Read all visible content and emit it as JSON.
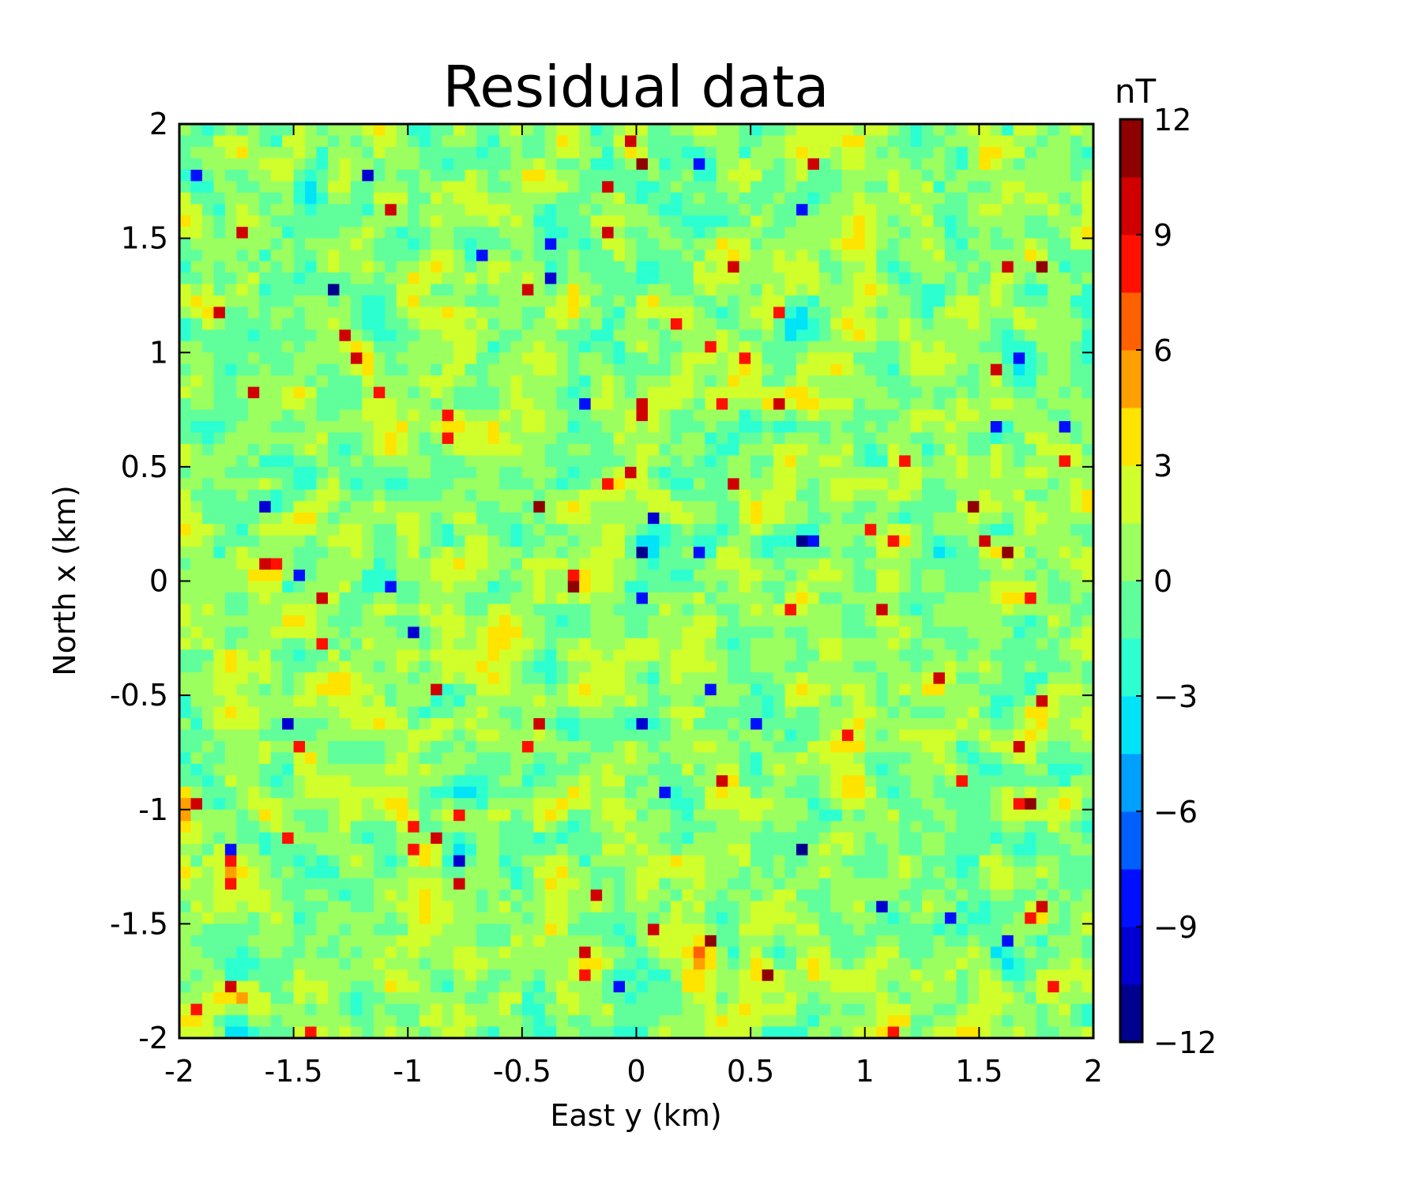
{
  "chart_data": {
    "type": "heatmap",
    "title": "Residual data",
    "xlabel": "East y (km)",
    "ylabel": "North x (km)",
    "xlim": [
      -2,
      2
    ],
    "ylim": [
      -2,
      2
    ],
    "x_ticks": [
      "-2",
      "-1.5",
      "-1",
      "-0.5",
      "0",
      "0.5",
      "1",
      "1.5",
      "2"
    ],
    "y_ticks": [
      "-2",
      "-1.5",
      "-1",
      "-0.5",
      "0",
      "0.5",
      "1",
      "1.5",
      "2"
    ],
    "grid": false,
    "colorbar": {
      "label": "nT",
      "range": [
        -12,
        12
      ],
      "ticks": [
        "12",
        "9",
        "6",
        "3",
        "0",
        "−3",
        "−6",
        "−9",
        "−12"
      ],
      "levels": [
        -12,
        -10.5,
        -9,
        -7.5,
        -6,
        -4.5,
        -3,
        -1.5,
        0,
        1.5,
        3,
        4.5,
        6,
        7.5,
        9,
        10.5,
        12
      ],
      "colors": [
        "#00008f",
        "#0000d0",
        "#0010ff",
        "#0060ff",
        "#00a0ff",
        "#00e4f8",
        "#2cffd0",
        "#60ff9c",
        "#9cff60",
        "#d0ff2c",
        "#ffe400",
        "#ffa000",
        "#ff6000",
        "#ff1000",
        "#d00000",
        "#8f0000"
      ]
    },
    "field": {
      "grid_points": [
        80,
        80
      ],
      "distribution": "random residual noise, approximately zero mean, standard deviation about 2 nT",
      "value_range": [
        -11,
        11
      ]
    }
  }
}
